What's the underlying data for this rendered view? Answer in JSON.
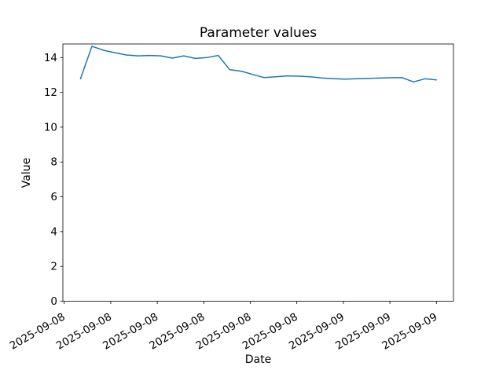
{
  "figure": {
    "background": "#ffffff",
    "text_color": "#000000"
  },
  "chart_data": {
    "type": "line",
    "title": "Parameter values",
    "xlabel": "Date",
    "ylabel": "Value",
    "ylim": [
      0,
      14.78
    ],
    "yticks": [
      0,
      2,
      4,
      6,
      8,
      10,
      12,
      14
    ],
    "x_tick_labels": [
      "2025-09-08",
      "2025-09-08",
      "2025-09-08",
      "2025-09-08",
      "2025-09-08",
      "2025-09-08",
      "2025-09-09",
      "2025-09-09",
      "2025-09-09"
    ],
    "x_tick_label_rotation_deg": 30,
    "grid": false,
    "series": [
      {
        "name": "Parameter values",
        "color": "#1f77b4",
        "line_width": 1.5,
        "x_axis_units_from_first_tick": [
          0.35,
          0.597,
          0.844,
          1.09,
          1.337,
          1.584,
          1.831,
          2.077,
          2.324,
          2.571,
          2.818,
          3.065,
          3.311,
          3.558,
          3.805,
          4.052,
          4.298,
          4.545,
          4.792,
          5.039,
          5.285,
          5.532,
          5.779,
          6.026,
          6.273,
          6.519,
          6.766,
          7.013,
          7.26,
          7.506,
          7.753,
          8.0
        ],
        "values": [
          12.78,
          14.65,
          14.42,
          14.28,
          14.15,
          14.1,
          14.12,
          14.1,
          13.97,
          14.1,
          13.95,
          14.0,
          14.12,
          13.3,
          13.22,
          13.03,
          12.85,
          12.9,
          12.95,
          12.93,
          12.9,
          12.83,
          12.79,
          12.76,
          12.78,
          12.8,
          12.82,
          12.84,
          12.85,
          12.6,
          12.78,
          12.72
        ]
      }
    ]
  }
}
